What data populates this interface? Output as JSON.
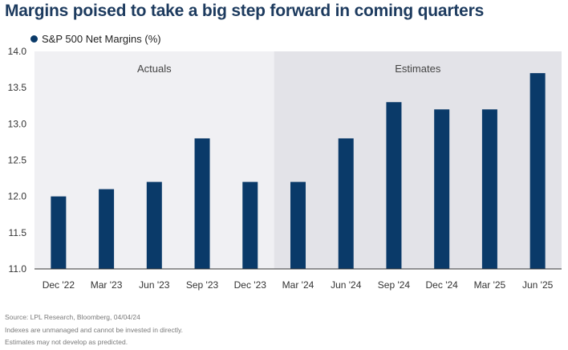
{
  "title": "Margins poised to take a big step forward in coming quarters",
  "legend_label": "S&P 500 Net Margins (%)",
  "colors": {
    "bar": "#0a3a69",
    "actuals_bg": "#f0f0f3",
    "estimates_bg": "#e3e3e8",
    "axis": "#333333",
    "text": "#333333"
  },
  "notes": [
    "Source: LPL Research, Bloomberg, 04/04/24",
    "Indexes are unmanaged and cannot be invested in directly.",
    "Estimates may not develop as predicted."
  ],
  "chart_data": {
    "type": "bar",
    "categories": [
      "Dec '22",
      "Mar '23",
      "Jun '23",
      "Sep '23",
      "Dec '23",
      "Mar '24",
      "Jun '24",
      "Sep '24",
      "Dec '24",
      "Mar '25",
      "Jun '25"
    ],
    "series": [
      {
        "name": "S&P 500 Net Margins (%)",
        "values": [
          12.0,
          12.1,
          12.2,
          12.8,
          12.2,
          12.2,
          12.8,
          13.3,
          13.2,
          13.2,
          13.7
        ]
      }
    ],
    "ylim": [
      11.0,
      14.0
    ],
    "yticks": [
      "11.0",
      "11.5",
      "12.0",
      "12.5",
      "13.0",
      "13.5",
      "14.0"
    ],
    "regions": [
      {
        "label": "Actuals",
        "from_index": 0,
        "to_index": 4
      },
      {
        "label": "Estimates",
        "from_index": 5,
        "to_index": 10
      }
    ],
    "legend_position": "top-left",
    "grid": false
  }
}
